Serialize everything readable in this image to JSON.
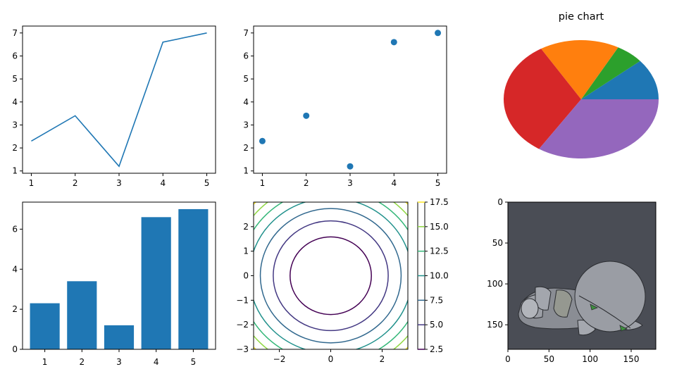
{
  "chart_data": [
    {
      "type": "line",
      "x": [
        1,
        2,
        3,
        4,
        5
      ],
      "y": [
        2.3,
        3.4,
        1.2,
        6.6,
        7.0
      ],
      "xlim": [
        0.8,
        5.2
      ],
      "ylim": [
        0.9,
        7.3
      ],
      "xticks": [
        "1",
        "2",
        "3",
        "4",
        "5"
      ],
      "yticks": [
        "1",
        "2",
        "3",
        "4",
        "5",
        "6",
        "7"
      ],
      "color": "#1f77b4"
    },
    {
      "type": "scatter",
      "x": [
        1,
        2,
        3,
        4,
        5
      ],
      "y": [
        2.3,
        3.4,
        1.2,
        6.6,
        7.0
      ],
      "xlim": [
        0.8,
        5.2
      ],
      "ylim": [
        0.9,
        7.3
      ],
      "xticks": [
        "1",
        "2",
        "3",
        "4",
        "5"
      ],
      "yticks": [
        "1",
        "2",
        "3",
        "4",
        "5",
        "6",
        "7"
      ],
      "color": "#1f77b4"
    },
    {
      "type": "pie",
      "title": "pie chart",
      "values": [
        2.3,
        1.2,
        3.4,
        6.6,
        7.0
      ],
      "colors": [
        "#1f77b4",
        "#2ca02c",
        "#ff7f0e",
        "#d62728",
        "#9467bd"
      ]
    },
    {
      "type": "bar",
      "categories": [
        "1",
        "2",
        "3",
        "4",
        "5"
      ],
      "values": [
        2.3,
        3.4,
        1.2,
        6.6,
        7.0
      ],
      "xlim": [
        0.4,
        5.6
      ],
      "ylim": [
        0,
        7.35
      ],
      "yticks": [
        "0",
        "2",
        "4",
        "6"
      ],
      "color": "#1f77b4"
    },
    {
      "type": "contour",
      "xlim": [
        -3,
        3
      ],
      "ylim": [
        -3,
        3
      ],
      "xticks": [
        "−2",
        "0",
        "2"
      ],
      "yticks": [
        "−3",
        "−2",
        "−1",
        "0",
        "1",
        "2"
      ],
      "levels": [
        2.5,
        5.0,
        7.5,
        10.0,
        12.5,
        15.0,
        17.5
      ],
      "level_colors": [
        "#440154",
        "#443983",
        "#31688e",
        "#21918c",
        "#35b779",
        "#90d743",
        "#fde725"
      ],
      "colorbar_ticks": [
        "2.5",
        "5.0",
        "7.5",
        "10.0",
        "12.5",
        "15.0",
        "17.5"
      ]
    },
    {
      "type": "image",
      "description_icon": "grey-robot-lying-down-icon",
      "xlim": [
        0,
        180
      ],
      "ylim": [
        180,
        0
      ],
      "xticks": [
        "0",
        "50",
        "100",
        "150"
      ],
      "yticks": [
        "0",
        "50",
        "100",
        "150"
      ],
      "background": "#4a4d55"
    }
  ]
}
